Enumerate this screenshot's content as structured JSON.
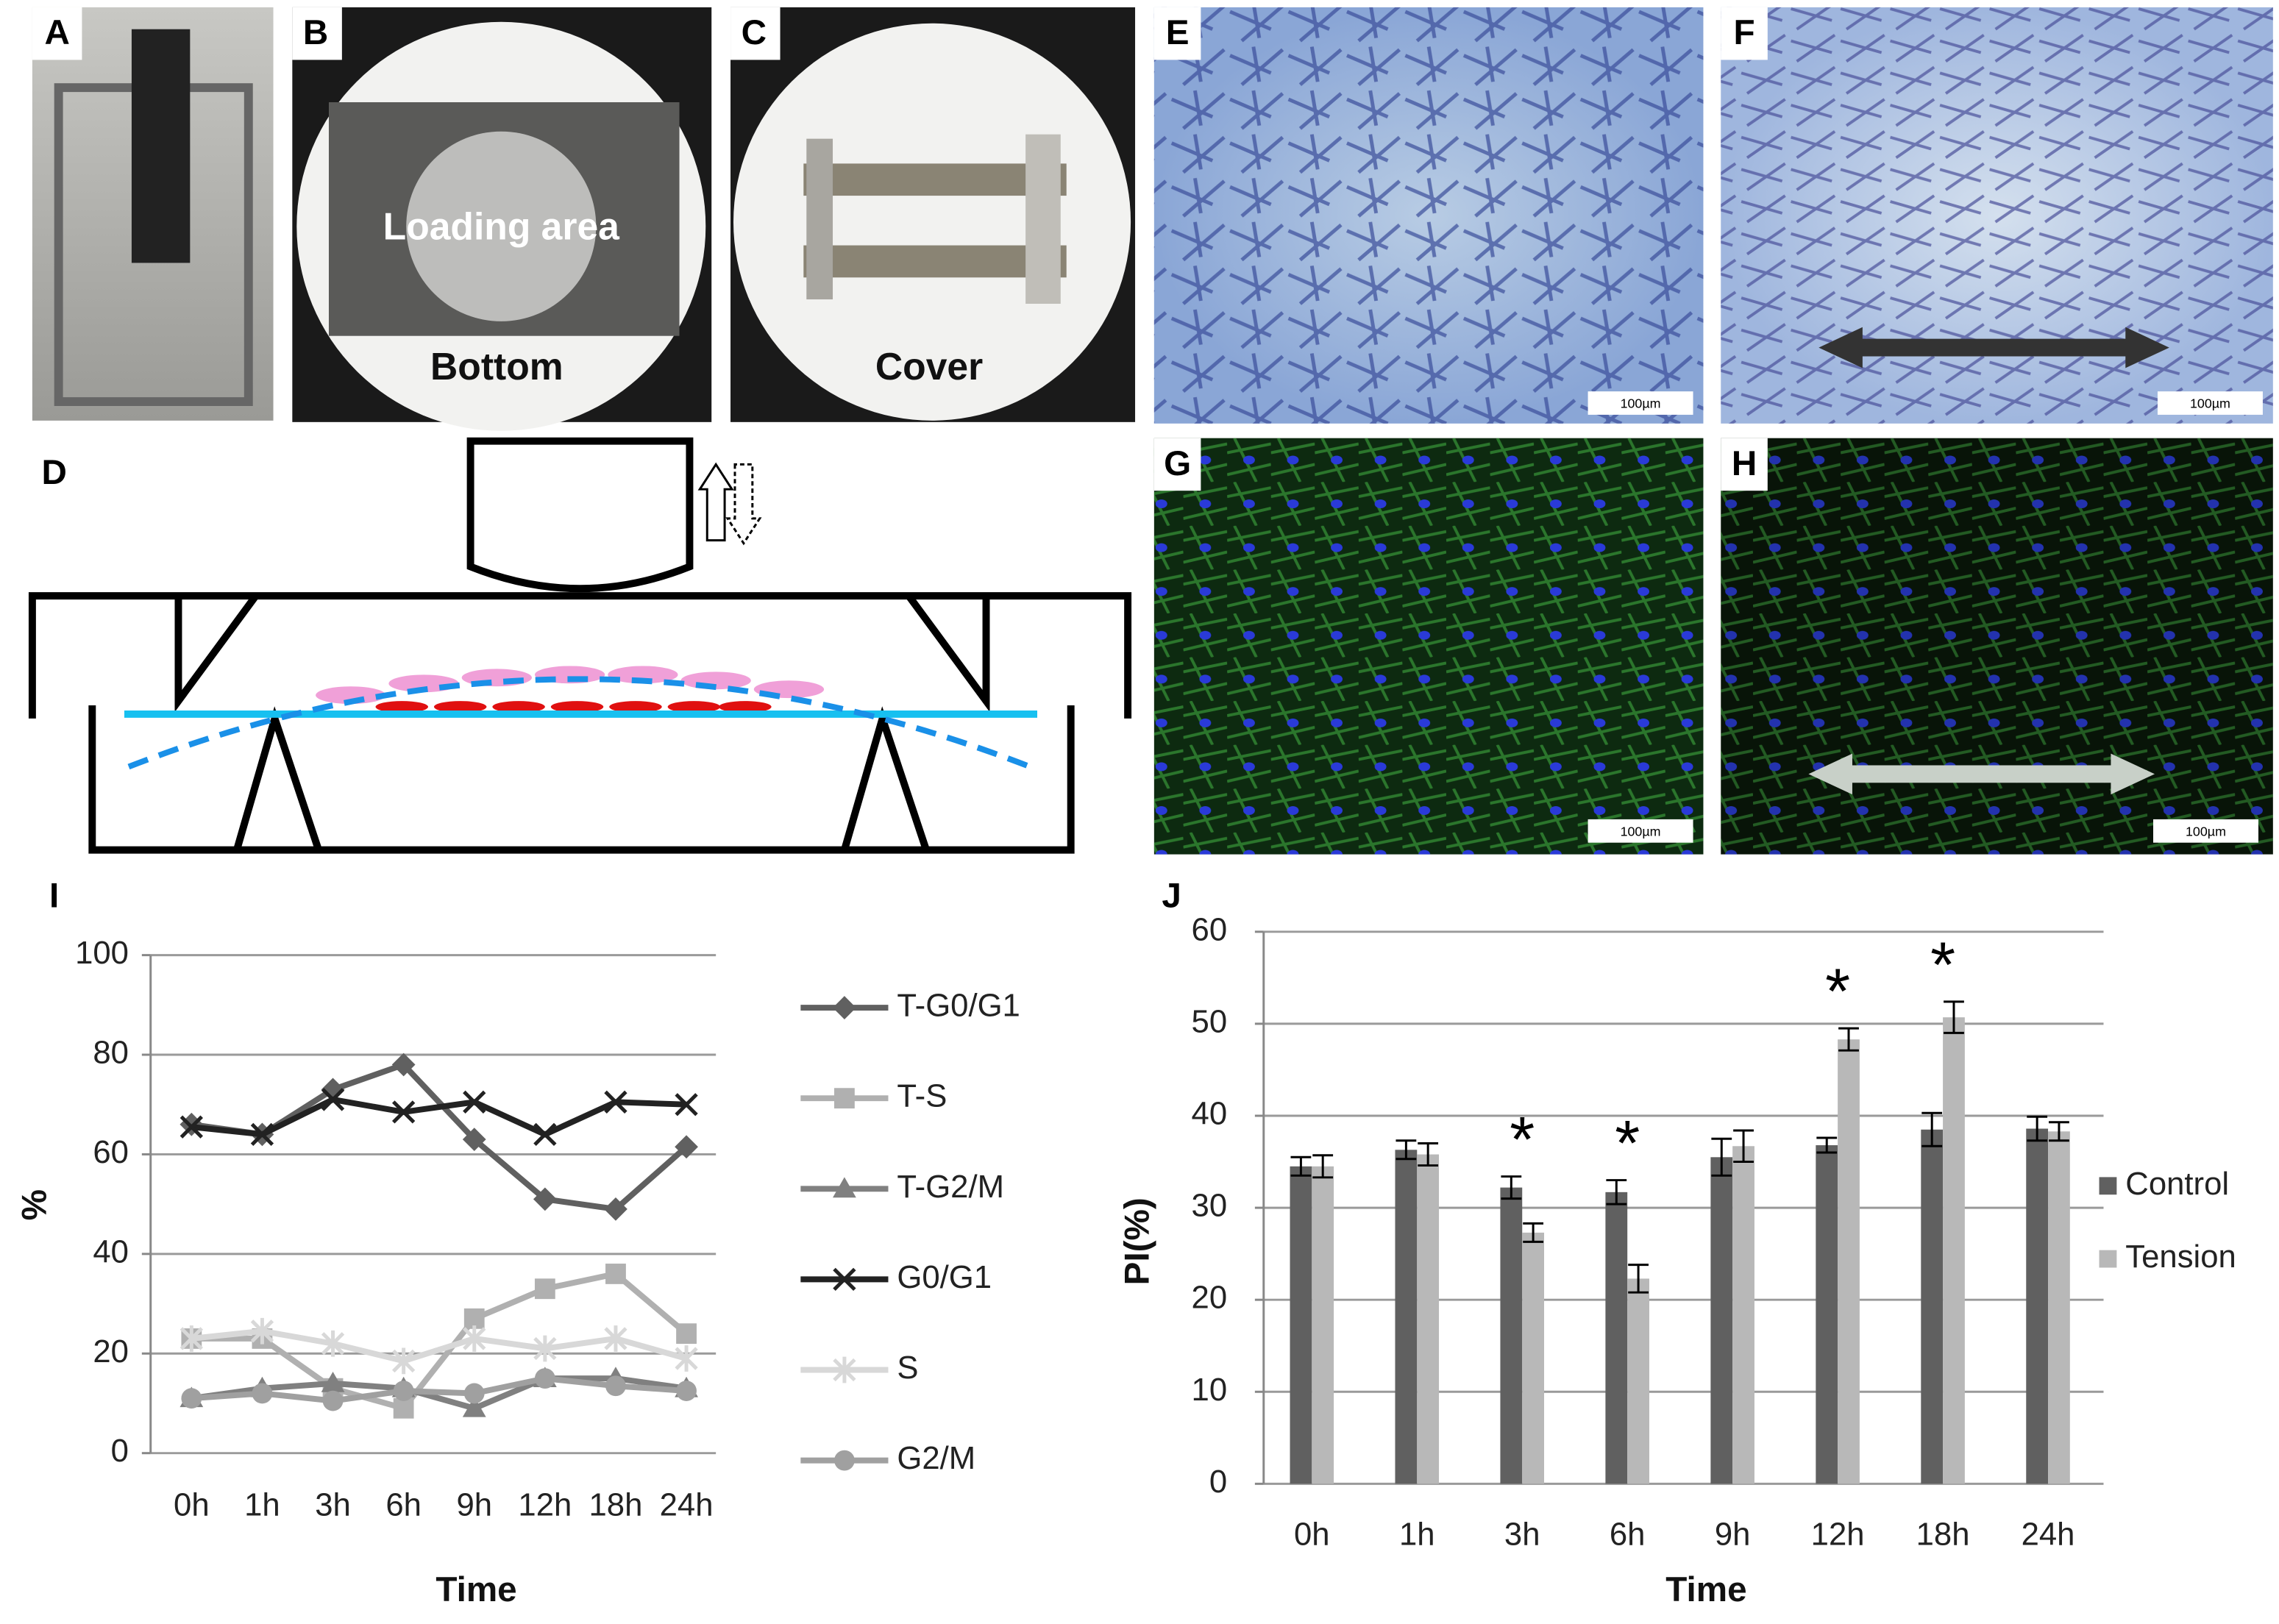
{
  "photos": [
    {
      "label": "A"
    },
    {
      "label": "B",
      "texts": [
        "Loading area",
        "Bottom"
      ]
    },
    {
      "label": "C",
      "texts": [
        "Cover"
      ]
    },
    {
      "label": "E",
      "scale_bar": "100µm"
    },
    {
      "label": "F",
      "scale_bar": "100µm"
    },
    {
      "label": "G",
      "scale_bar": "100µm"
    },
    {
      "label": "H",
      "scale_bar": "100µm"
    }
  ],
  "diagram": {
    "label": "D"
  },
  "chart_data": [
    {
      "type": "line",
      "panel": "I",
      "ylabel": "%",
      "xlabel": "Time",
      "categories": [
        "0h",
        "1h",
        "3h",
        "6h",
        "9h",
        "12h",
        "18h",
        "24h"
      ],
      "ylim": [
        0,
        100
      ],
      "yticks": [
        0,
        20,
        40,
        60,
        80,
        100
      ],
      "grid": true,
      "series": [
        {
          "name": "T-G0/G1",
          "color": "#606060",
          "marker": "diamond",
          "values": [
            66,
            64,
            73,
            78,
            63,
            51,
            49,
            61.5
          ]
        },
        {
          "name": "T-S",
          "color": "#b0b0b0",
          "marker": "square",
          "values": [
            23,
            23,
            13,
            9,
            27,
            33,
            36,
            24
          ]
        },
        {
          "name": "T-G2/M",
          "color": "#808080",
          "marker": "triangle",
          "values": [
            11,
            13,
            14,
            13,
            9,
            15,
            15,
            13
          ]
        },
        {
          "name": "G0/G1",
          "color": "#222222",
          "marker": "x",
          "values": [
            65.5,
            64,
            71,
            68.5,
            70.5,
            64,
            70.5,
            70
          ]
        },
        {
          "name": "S",
          "color": "#d8d8d8",
          "marker": "asterisk",
          "values": [
            23,
            24.5,
            22,
            18.5,
            23,
            21,
            23,
            19
          ]
        },
        {
          "name": "G2/M",
          "color": "#a0a0a0",
          "marker": "circle",
          "values": [
            11,
            12,
            10.5,
            12.5,
            12,
            15,
            13.5,
            12.5
          ]
        }
      ]
    },
    {
      "type": "bar",
      "panel": "J",
      "ylabel": "PI(%)",
      "xlabel": "Time",
      "categories": [
        "0h",
        "1h",
        "3h",
        "6h",
        "9h",
        "12h",
        "18h",
        "24h"
      ],
      "ylim": [
        0,
        60
      ],
      "yticks": [
        0,
        10,
        20,
        30,
        40,
        50,
        60
      ],
      "grid": true,
      "significance": [
        null,
        null,
        "*",
        "*",
        null,
        "*",
        "*",
        null
      ],
      "series": [
        {
          "name": "Control",
          "color": "#606060",
          "values": [
            34.5,
            36.3,
            32.2,
            31.7,
            35.5,
            36.8,
            38.5,
            38.6
          ],
          "errors": [
            1,
            1,
            1.2,
            1.3,
            2,
            0.8,
            1.8,
            1.3
          ]
        },
        {
          "name": "Tension",
          "color": "#b8b8b8",
          "values": [
            34.5,
            35.8,
            27.3,
            22.3,
            36.7,
            48.3,
            50.7,
            38.3
          ],
          "errors": [
            1.2,
            1.2,
            1,
            1.5,
            1.7,
            1.2,
            1.7,
            1
          ]
        }
      ]
    }
  ]
}
